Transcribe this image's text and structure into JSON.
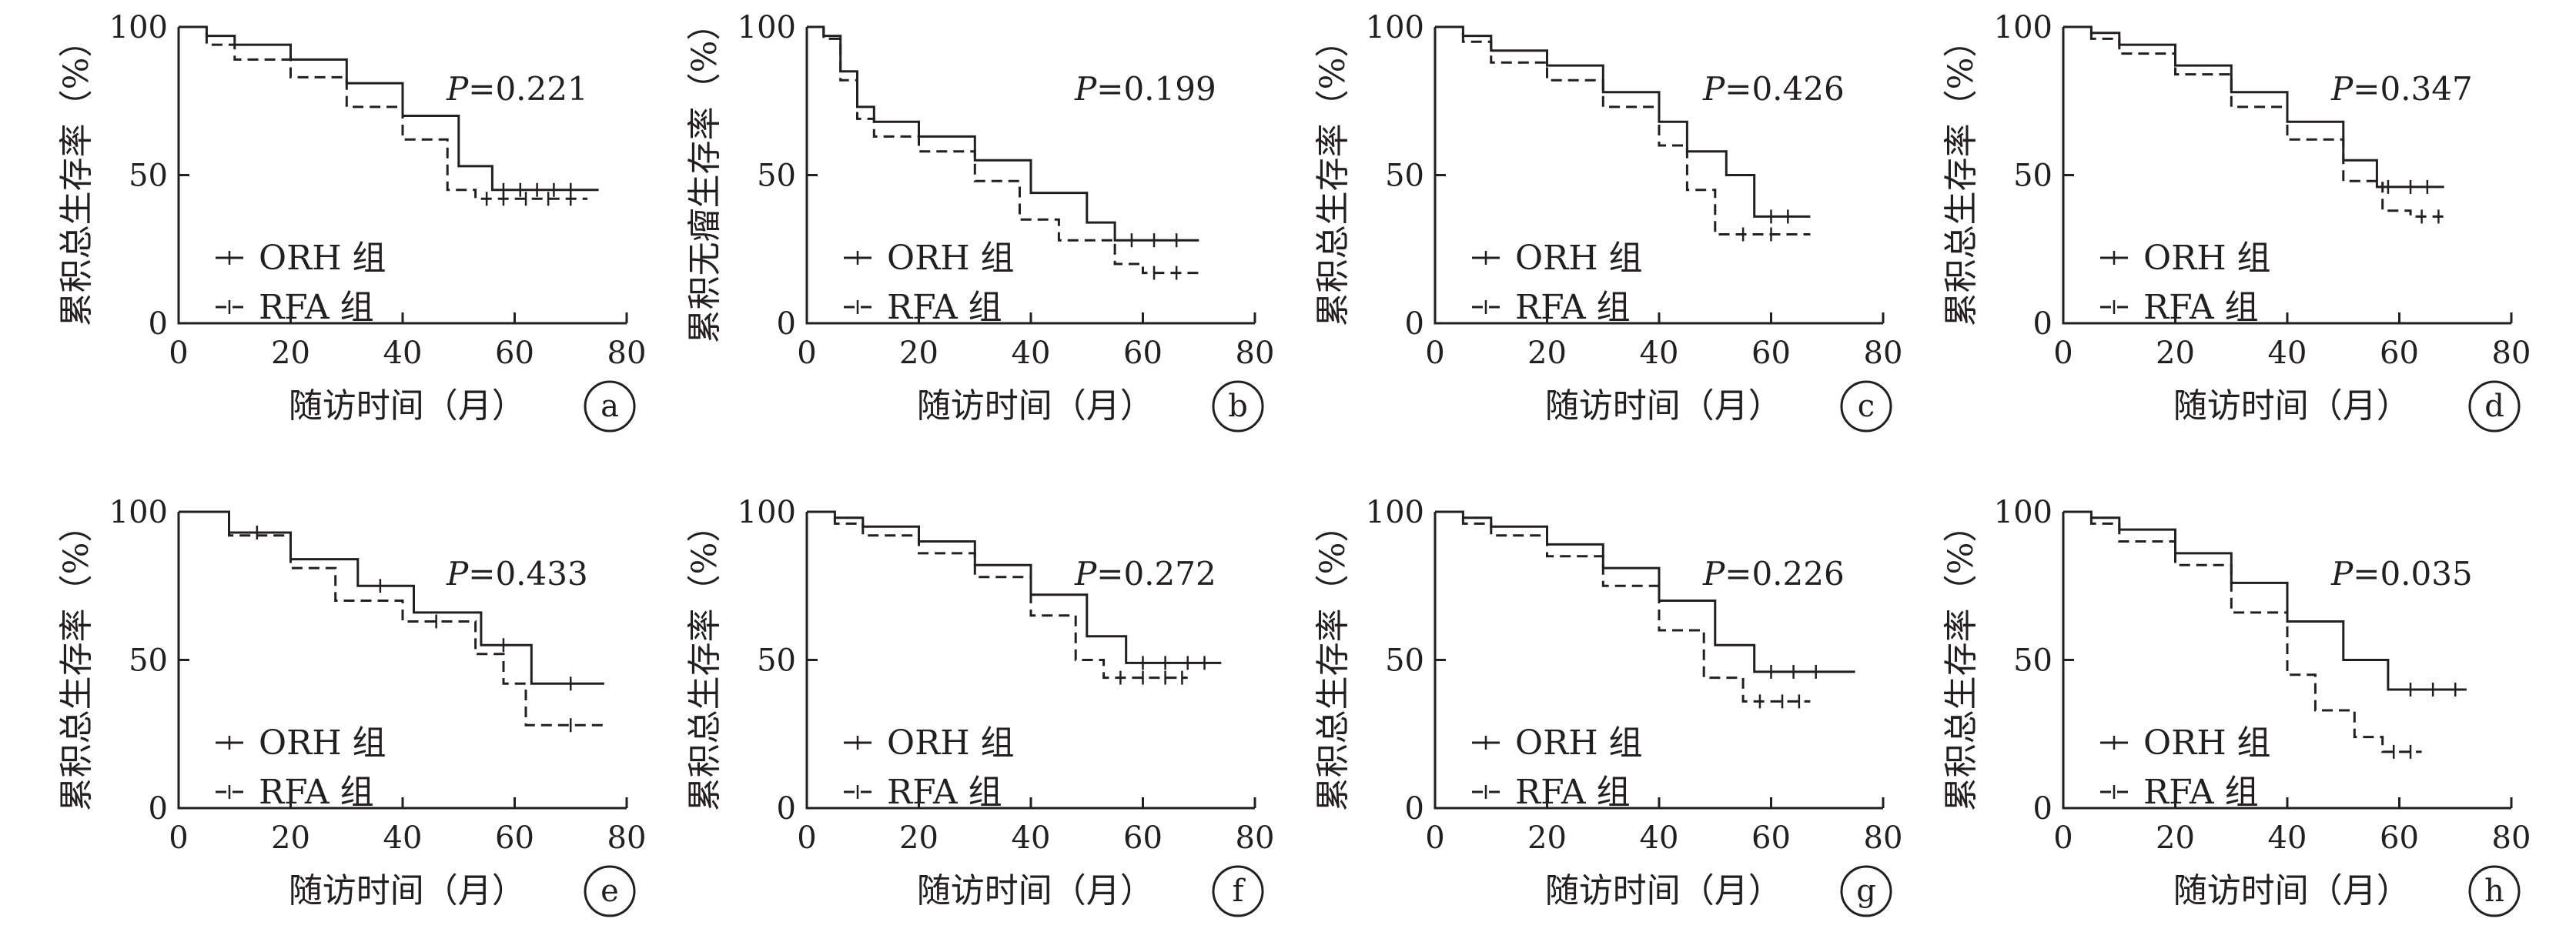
{
  "figure": {
    "colors": {
      "ink": "#231f20",
      "background": "#ffffff"
    }
  },
  "chart_data": [
    {
      "type": "line",
      "panel": "a",
      "xlabel": "随访时间（月）",
      "ylabel": "累积总生存率（%）",
      "xlim": [
        0,
        80
      ],
      "ylim": [
        0,
        100
      ],
      "xticks": [
        "0",
        "20",
        "40",
        "60",
        "80"
      ],
      "yticks": [
        "0",
        "50",
        "100"
      ],
      "p_prefix": "P",
      "p_value": "=0.221",
      "legend": [
        "ORH 组",
        "RFA 组"
      ],
      "series": [
        {
          "name": "ORH 组",
          "style": "solid",
          "points": [
            [
              0,
              100
            ],
            [
              5,
              97
            ],
            [
              10,
              94
            ],
            [
              20,
              89
            ],
            [
              30,
              81
            ],
            [
              40,
              70
            ],
            [
              50,
              53
            ],
            [
              56,
              45
            ],
            [
              75,
              45
            ]
          ],
          "censored": [
            [
              58,
              45
            ],
            [
              61,
              45
            ],
            [
              64,
              45
            ],
            [
              67,
              45
            ],
            [
              70,
              45
            ]
          ]
        },
        {
          "name": "RFA 组",
          "style": "dashed",
          "points": [
            [
              0,
              100
            ],
            [
              5,
              94
            ],
            [
              10,
              89
            ],
            [
              20,
              83
            ],
            [
              30,
              73
            ],
            [
              40,
              62
            ],
            [
              48,
              45
            ],
            [
              53,
              42
            ],
            [
              73,
              42
            ]
          ],
          "censored": [
            [
              55,
              42
            ],
            [
              58,
              42
            ],
            [
              62,
              42
            ],
            [
              66,
              42
            ],
            [
              70,
              42
            ]
          ]
        }
      ]
    },
    {
      "type": "line",
      "panel": "b",
      "xlabel": "随访时间（月）",
      "ylabel": "累积无瘤生存率（%）",
      "xlim": [
        0,
        80
      ],
      "ylim": [
        0,
        100
      ],
      "xticks": [
        "0",
        "20",
        "40",
        "60",
        "80"
      ],
      "yticks": [
        "0",
        "50",
        "100"
      ],
      "p_prefix": "P",
      "p_value": "=0.199",
      "legend": [
        "ORH 组",
        "RFA 组"
      ],
      "series": [
        {
          "name": "ORH 组",
          "style": "solid",
          "points": [
            [
              0,
              100
            ],
            [
              3,
              97
            ],
            [
              6,
              85
            ],
            [
              9,
              73
            ],
            [
              12,
              68
            ],
            [
              20,
              63
            ],
            [
              30,
              55
            ],
            [
              40,
              44
            ],
            [
              50,
              34
            ],
            [
              55,
              28
            ],
            [
              70,
              28
            ]
          ],
          "censored": [
            [
              58,
              28
            ],
            [
              62,
              28
            ],
            [
              66,
              28
            ]
          ]
        },
        {
          "name": "RFA 组",
          "style": "dashed",
          "points": [
            [
              0,
              100
            ],
            [
              3,
              96
            ],
            [
              6,
              82
            ],
            [
              9,
              69
            ],
            [
              12,
              63
            ],
            [
              20,
              58
            ],
            [
              30,
              48
            ],
            [
              38,
              35
            ],
            [
              45,
              28
            ],
            [
              55,
              20
            ],
            [
              60,
              17
            ],
            [
              70,
              17
            ]
          ],
          "censored": [
            [
              62,
              17
            ],
            [
              66,
              17
            ]
          ]
        }
      ]
    },
    {
      "type": "line",
      "panel": "c",
      "xlabel": "随访时间（月）",
      "ylabel": "累积总生存率（%）",
      "xlim": [
        0,
        80
      ],
      "ylim": [
        0,
        100
      ],
      "xticks": [
        "0",
        "20",
        "40",
        "60",
        "80"
      ],
      "yticks": [
        "0",
        "50",
        "100"
      ],
      "p_prefix": "P",
      "p_value": "=0.426",
      "legend": [
        "ORH 组",
        "RFA 组"
      ],
      "series": [
        {
          "name": "ORH 组",
          "style": "solid",
          "points": [
            [
              0,
              100
            ],
            [
              5,
              97
            ],
            [
              10,
              92
            ],
            [
              20,
              87
            ],
            [
              30,
              78
            ],
            [
              40,
              68
            ],
            [
              45,
              58
            ],
            [
              52,
              50
            ],
            [
              57,
              36
            ],
            [
              67,
              36
            ]
          ],
          "censored": [
            [
              60,
              36
            ],
            [
              63,
              36
            ]
          ]
        },
        {
          "name": "RFA 组",
          "style": "dashed",
          "points": [
            [
              0,
              100
            ],
            [
              5,
              95
            ],
            [
              10,
              88
            ],
            [
              20,
              82
            ],
            [
              30,
              73
            ],
            [
              40,
              60
            ],
            [
              45,
              45
            ],
            [
              50,
              30
            ],
            [
              67,
              30
            ]
          ],
          "censored": [
            [
              55,
              30
            ],
            [
              60,
              30
            ]
          ]
        }
      ]
    },
    {
      "type": "line",
      "panel": "d",
      "xlabel": "随访时间（月）",
      "ylabel": "累积总生存率（%）",
      "xlim": [
        0,
        80
      ],
      "ylim": [
        0,
        100
      ],
      "xticks": [
        "0",
        "20",
        "40",
        "60",
        "80"
      ],
      "yticks": [
        "0",
        "50",
        "100"
      ],
      "p_prefix": "P",
      "p_value": "=0.347",
      "legend": [
        "ORH 组",
        "RFA 组"
      ],
      "series": [
        {
          "name": "ORH 组",
          "style": "solid",
          "points": [
            [
              0,
              100
            ],
            [
              5,
              98
            ],
            [
              10,
              94
            ],
            [
              20,
              87
            ],
            [
              30,
              78
            ],
            [
              40,
              68
            ],
            [
              50,
              55
            ],
            [
              56,
              46
            ],
            [
              68,
              46
            ]
          ],
          "censored": [
            [
              58,
              46
            ],
            [
              62,
              46
            ],
            [
              65,
              46
            ]
          ]
        },
        {
          "name": "RFA 组",
          "style": "dashed",
          "points": [
            [
              0,
              100
            ],
            [
              5,
              96
            ],
            [
              10,
              91
            ],
            [
              20,
              84
            ],
            [
              30,
              73
            ],
            [
              40,
              62
            ],
            [
              50,
              48
            ],
            [
              57,
              38
            ],
            [
              62,
              36
            ],
            [
              68,
              36
            ]
          ],
          "censored": [
            [
              64,
              36
            ],
            [
              67,
              36
            ]
          ]
        }
      ]
    },
    {
      "type": "line",
      "panel": "e",
      "xlabel": "随访时间（月）",
      "ylabel": "累积总生存率（%）",
      "xlim": [
        0,
        80
      ],
      "ylim": [
        0,
        100
      ],
      "xticks": [
        "0",
        "20",
        "40",
        "60",
        "80"
      ],
      "yticks": [
        "0",
        "50",
        "100"
      ],
      "p_prefix": "P",
      "p_value": "=0.433",
      "legend": [
        "ORH 组",
        "RFA 组"
      ],
      "series": [
        {
          "name": "ORH 组",
          "style": "solid",
          "points": [
            [
              0,
              100
            ],
            [
              9,
              100
            ],
            [
              9,
              93
            ],
            [
              20,
              84
            ],
            [
              32,
              75
            ],
            [
              42,
              66
            ],
            [
              54,
              55
            ],
            [
              63,
              42
            ],
            [
              76,
              42
            ]
          ],
          "censored": [
            [
              14,
              93
            ],
            [
              36,
              75
            ],
            [
              58,
              55
            ],
            [
              70,
              42
            ]
          ]
        },
        {
          "name": "RFA 组",
          "style": "dashed",
          "points": [
            [
              0,
              100
            ],
            [
              9,
              92
            ],
            [
              20,
              81
            ],
            [
              28,
              70
            ],
            [
              40,
              63
            ],
            [
              53,
              52
            ],
            [
              58,
              42
            ],
            [
              62,
              28
            ],
            [
              76,
              28
            ]
          ],
          "censored": [
            [
              46,
              63
            ],
            [
              70,
              28
            ]
          ]
        }
      ]
    },
    {
      "type": "line",
      "panel": "f",
      "xlabel": "随访时间（月）",
      "ylabel": "累积总生存率（%）",
      "xlim": [
        0,
        80
      ],
      "ylim": [
        0,
        100
      ],
      "xticks": [
        "0",
        "20",
        "40",
        "60",
        "80"
      ],
      "yticks": [
        "0",
        "50",
        "100"
      ],
      "p_prefix": "P",
      "p_value": "=0.272",
      "legend": [
        "ORH 组",
        "RFA 组"
      ],
      "series": [
        {
          "name": "ORH 组",
          "style": "solid",
          "points": [
            [
              0,
              100
            ],
            [
              5,
              98
            ],
            [
              10,
              95
            ],
            [
              20,
              90
            ],
            [
              30,
              82
            ],
            [
              40,
              72
            ],
            [
              50,
              58
            ],
            [
              57,
              49
            ],
            [
              74,
              49
            ]
          ],
          "censored": [
            [
              60,
              49
            ],
            [
              64,
              49
            ],
            [
              68,
              49
            ],
            [
              71,
              49
            ]
          ]
        },
        {
          "name": "RFA 组",
          "style": "dashed",
          "points": [
            [
              0,
              100
            ],
            [
              5,
              96
            ],
            [
              10,
              92
            ],
            [
              20,
              86
            ],
            [
              30,
              78
            ],
            [
              40,
              65
            ],
            [
              48,
              50
            ],
            [
              53,
              44
            ],
            [
              68,
              44
            ]
          ],
          "censored": [
            [
              56,
              44
            ],
            [
              60,
              44
            ],
            [
              64,
              44
            ],
            [
              67,
              44
            ]
          ]
        }
      ]
    },
    {
      "type": "line",
      "panel": "g",
      "xlabel": "随访时间（月）",
      "ylabel": "累积总生存率（%）",
      "xlim": [
        0,
        80
      ],
      "ylim": [
        0,
        100
      ],
      "xticks": [
        "0",
        "20",
        "40",
        "60",
        "80"
      ],
      "yticks": [
        "0",
        "50",
        "100"
      ],
      "p_prefix": "P",
      "p_value": "=0.226",
      "legend": [
        "ORH 组",
        "RFA 组"
      ],
      "series": [
        {
          "name": "ORH 组",
          "style": "solid",
          "points": [
            [
              0,
              100
            ],
            [
              5,
              98
            ],
            [
              10,
              95
            ],
            [
              20,
              89
            ],
            [
              30,
              81
            ],
            [
              40,
              70
            ],
            [
              50,
              55
            ],
            [
              57,
              46
            ],
            [
              75,
              46
            ]
          ],
          "censored": [
            [
              60,
              46
            ],
            [
              64,
              46
            ],
            [
              68,
              46
            ]
          ]
        },
        {
          "name": "RFA 组",
          "style": "dashed",
          "points": [
            [
              0,
              100
            ],
            [
              5,
              96
            ],
            [
              10,
              92
            ],
            [
              20,
              85
            ],
            [
              30,
              75
            ],
            [
              40,
              60
            ],
            [
              48,
              44
            ],
            [
              55,
              36
            ],
            [
              67,
              36
            ]
          ],
          "censored": [
            [
              58,
              36
            ],
            [
              62,
              36
            ],
            [
              65,
              36
            ]
          ]
        }
      ]
    },
    {
      "type": "line",
      "panel": "h",
      "xlabel": "随访时间（月）",
      "ylabel": "累积总生存率（%）",
      "xlim": [
        0,
        80
      ],
      "ylim": [
        0,
        100
      ],
      "xticks": [
        "0",
        "20",
        "40",
        "60",
        "80"
      ],
      "yticks": [
        "0",
        "50",
        "100"
      ],
      "p_prefix": "P",
      "p_value": "=0.035",
      "legend": [
        "ORH 组",
        "RFA 组"
      ],
      "series": [
        {
          "name": "ORH 组",
          "style": "solid",
          "points": [
            [
              0,
              100
            ],
            [
              5,
              98
            ],
            [
              10,
              94
            ],
            [
              20,
              86
            ],
            [
              30,
              76
            ],
            [
              40,
              63
            ],
            [
              50,
              50
            ],
            [
              58,
              40
            ],
            [
              72,
              40
            ]
          ],
          "censored": [
            [
              62,
              40
            ],
            [
              66,
              40
            ],
            [
              70,
              40
            ]
          ]
        },
        {
          "name": "RFA 组",
          "style": "dashed",
          "points": [
            [
              0,
              100
            ],
            [
              5,
              96
            ],
            [
              10,
              90
            ],
            [
              20,
              82
            ],
            [
              30,
              66
            ],
            [
              40,
              45
            ],
            [
              45,
              33
            ],
            [
              52,
              24
            ],
            [
              57,
              19
            ],
            [
              64,
              19
            ]
          ],
          "censored": [
            [
              59,
              19
            ],
            [
              62,
              19
            ]
          ]
        }
      ]
    }
  ]
}
